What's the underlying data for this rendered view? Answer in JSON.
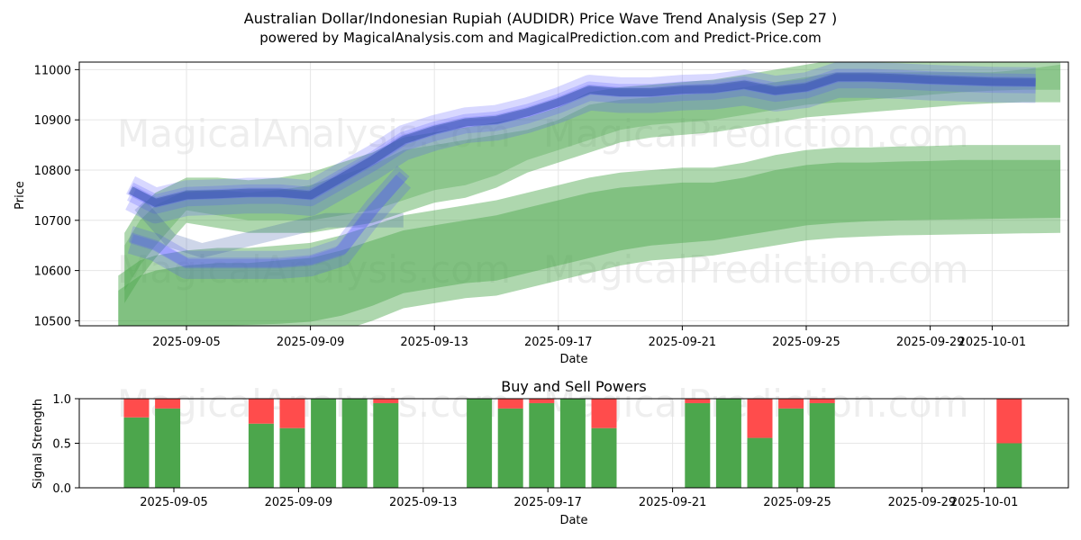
{
  "title_line1": "Australian Dollar/Indonesian Rupiah (AUDIDR) Price Wave Trend Analysis (Sep 27 )",
  "title_line2": "powered by MagicalAnalysis.com and MagicalPrediction.com and Predict-Price.com",
  "watermarks": [
    "MagicalAnalysis.com",
    "MagicalPrediction.com"
  ],
  "colors": {
    "blue_band": "#4d4dff",
    "blue_core": "#3a5aa8",
    "green_band": "#4ca64c",
    "buy": "#4ca64c",
    "sell": "#ff4c4c"
  },
  "chart_data": [
    {
      "type": "area",
      "name": "price-wave",
      "xlabel": "Date",
      "ylabel": "Price",
      "ylim": [
        10490,
        11015
      ],
      "yticks": [
        10500,
        10600,
        10700,
        10800,
        10900,
        11000
      ],
      "xticks": [
        {
          "day": 5,
          "label": "2025-09-05"
        },
        {
          "day": 9,
          "label": "2025-09-09"
        },
        {
          "day": 13,
          "label": "2025-09-13"
        },
        {
          "day": 17,
          "label": "2025-09-17"
        },
        {
          "day": 21,
          "label": "2025-09-21"
        },
        {
          "day": 25,
          "label": "2025-09-25"
        },
        {
          "day": 29,
          "label": "2025-09-29"
        },
        {
          "day": 31,
          "label": "2025-10-01"
        }
      ],
      "grid": true,
      "blue_upper": {
        "x": [
          3.2,
          4,
          5,
          6,
          7,
          8,
          9,
          10,
          11,
          12,
          13,
          14,
          15,
          16,
          17,
          18,
          19,
          20,
          21,
          22,
          23,
          24,
          25,
          26,
          27,
          28,
          29,
          30,
          31,
          32.4
        ],
        "y": [
          10760,
          10735,
          10750,
          10752,
          10755,
          10755,
          10750,
          10785,
          10820,
          10860,
          10880,
          10895,
          10900,
          10915,
          10935,
          10960,
          10955,
          10955,
          10960,
          10962,
          10970,
          10958,
          10965,
          10985,
          10985,
          10983,
          10980,
          10978,
          10976,
          10975
        ]
      },
      "blue_lower": {
        "x": [
          3.2,
          4,
          5,
          6,
          7,
          8,
          9,
          10,
          11,
          12
        ],
        "y": [
          10665,
          10650,
          10615,
          10615,
          10615,
          10615,
          10620,
          10640,
          10720,
          10790
        ]
      },
      "green_upper_band": {
        "x": [
          3,
          3.5,
          4,
          5,
          6,
          7,
          8,
          9,
          10,
          11,
          12,
          13,
          14,
          15,
          16,
          17,
          18,
          19,
          20,
          21,
          22,
          23,
          24,
          25,
          26,
          27,
          28,
          29,
          30,
          31,
          32,
          33.2
        ],
        "hi": [
          10650,
          10700,
          10730,
          10760,
          10760,
          10755,
          10760,
          10770,
          10790,
          10810,
          10840,
          10850,
          10860,
          10870,
          10880,
          10900,
          10930,
          10940,
          10945,
          10950,
          10955,
          10965,
          10975,
          10985,
          10995,
          10995,
          10995,
          10995,
          10995,
          10995,
          11000,
          11010
        ],
        "lo": [
          10560,
          10610,
          10650,
          10720,
          10710,
          10700,
          10700,
          10700,
          10710,
          10720,
          10740,
          10760,
          10770,
          10790,
          10820,
          10840,
          10860,
          10880,
          10890,
          10895,
          10900,
          10910,
          10920,
          10930,
          10935,
          10940,
          10945,
          10950,
          10955,
          10958,
          10960,
          10960
        ]
      },
      "green_lower_band": {
        "x": [
          2.8,
          3.5,
          4,
          5,
          6,
          7,
          8,
          9,
          10,
          11,
          12,
          13,
          14,
          15,
          16,
          17,
          18,
          19,
          20,
          21,
          22,
          23,
          24,
          25,
          26,
          27,
          28,
          29,
          30,
          31,
          32,
          33.2
        ],
        "hi": [
          10560,
          10590,
          10600,
          10610,
          10615,
          10615,
          10620,
          10625,
          10640,
          10660,
          10680,
          10690,
          10700,
          10710,
          10725,
          10740,
          10755,
          10765,
          10770,
          10775,
          10775,
          10785,
          10800,
          10810,
          10815,
          10815,
          10817,
          10818,
          10820,
          10820,
          10820,
          10820
        ],
        "lo": [
          10460,
          10470,
          10480,
          10485,
          10490,
          10492,
          10494,
          10498,
          10510,
          10530,
          10555,
          10565,
          10575,
          10580,
          10595,
          10610,
          10625,
          10640,
          10650,
          10655,
          10660,
          10670,
          10680,
          10690,
          10695,
          10698,
          10700,
          10701,
          10702,
          10703,
          10704,
          10705
        ]
      }
    },
    {
      "type": "bar",
      "name": "buy-sell-powers",
      "title": "Buy and Sell Powers",
      "xlabel": "Date",
      "ylabel": "Signal Strength",
      "ylim": [
        0,
        1
      ],
      "yticks": [
        0.0,
        0.5,
        1.0
      ],
      "ytick_labels": [
        "0.0",
        "0.5",
        "1.0"
      ],
      "xticks": [
        {
          "day": 5,
          "label": "2025-09-05"
        },
        {
          "day": 9,
          "label": "2025-09-09"
        },
        {
          "day": 13,
          "label": "2025-09-13"
        },
        {
          "day": 17,
          "label": "2025-09-17"
        },
        {
          "day": 21,
          "label": "2025-09-21"
        },
        {
          "day": 25,
          "label": "2025-09-25"
        },
        {
          "day": 29,
          "label": "2025-09-29"
        },
        {
          "day": 31,
          "label": "2025-10-01"
        }
      ],
      "days": [
        4,
        5,
        8,
        9,
        10,
        11,
        12,
        15,
        16,
        17,
        18,
        19,
        22,
        23,
        24,
        25,
        26,
        32
      ],
      "buy": [
        0.79,
        0.89,
        0.72,
        0.67,
        1.0,
        1.0,
        0.95,
        1.0,
        0.89,
        0.95,
        1.0,
        0.67,
        0.95,
        1.0,
        0.56,
        0.89,
        0.95,
        0.5
      ],
      "sell": [
        0.21,
        0.11,
        0.28,
        0.33,
        0.0,
        0.0,
        0.05,
        0.0,
        0.11,
        0.05,
        0.0,
        0.33,
        0.05,
        0.0,
        0.44,
        0.11,
        0.05,
        0.5
      ]
    }
  ]
}
